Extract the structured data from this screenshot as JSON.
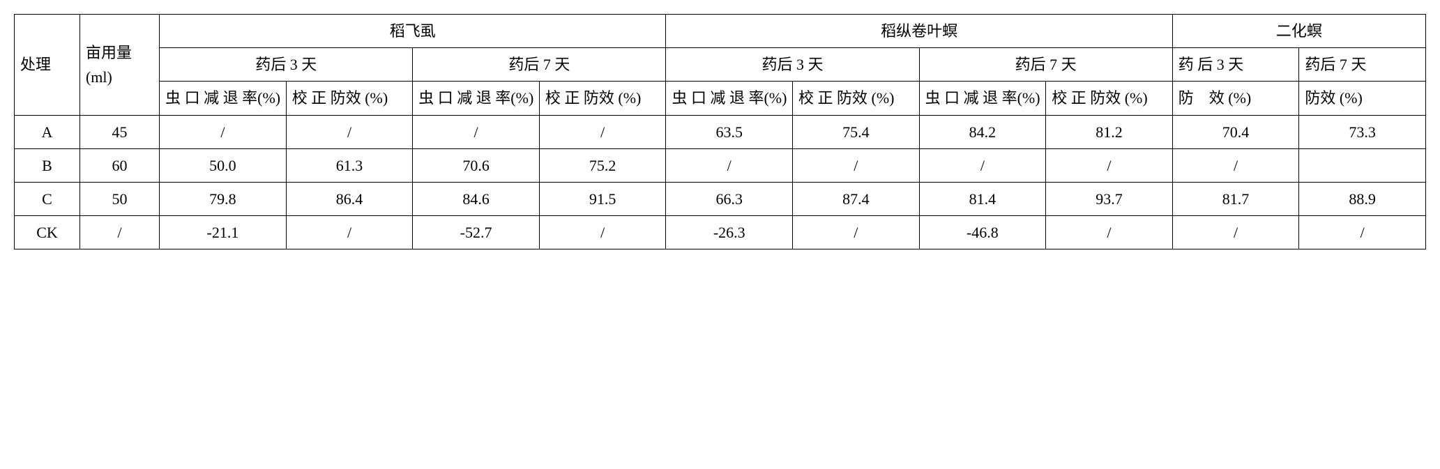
{
  "headers": {
    "treatment": "处理",
    "dose": "亩用量(ml)",
    "group1": "稻飞虱",
    "group2": "稻纵卷叶螟",
    "group3": "二化螟",
    "day3": "药后 3 天",
    "day7": "药后 7 天",
    "day3_alt": "药 后 3 天",
    "reduction": "虫 口 减 退 率(%)",
    "corrected": "校 正 防效 (%)",
    "efficacy": "防　效 (%)",
    "efficacy2": "防效 (%)"
  },
  "rows": [
    {
      "treatment": "A",
      "dose": "45",
      "g1d3r": "/",
      "g1d3c": "/",
      "g1d7r": "/",
      "g1d7c": "/",
      "g2d3r": "63.5",
      "g2d3c": "75.4",
      "g2d7r": "84.2",
      "g2d7c": "81.2",
      "g3d3": "70.4",
      "g3d7": "73.3"
    },
    {
      "treatment": "B",
      "dose": "60",
      "g1d3r": "50.0",
      "g1d3c": "61.3",
      "g1d7r": "70.6",
      "g1d7c": "75.2",
      "g2d3r": "/",
      "g2d3c": "/",
      "g2d7r": "/",
      "g2d7c": "/",
      "g3d3": "/",
      "g3d7": ""
    },
    {
      "treatment": "C",
      "dose": "50",
      "g1d3r": "79.8",
      "g1d3c": "86.4",
      "g1d7r": "84.6",
      "g1d7c": "91.5",
      "g2d3r": "66.3",
      "g2d3c": "87.4",
      "g2d7r": "81.4",
      "g2d7c": "93.7",
      "g3d3": "81.7",
      "g3d7": "88.9"
    },
    {
      "treatment": "CK",
      "dose": "/",
      "g1d3r": "-21.1",
      "g1d3c": "/",
      "g1d7r": "-52.7",
      "g1d7c": "/",
      "g2d3r": "-26.3",
      "g2d3c": "/",
      "g2d7r": "-46.8",
      "g2d7c": "/",
      "g3d3": "/",
      "g3d7": "/"
    }
  ]
}
